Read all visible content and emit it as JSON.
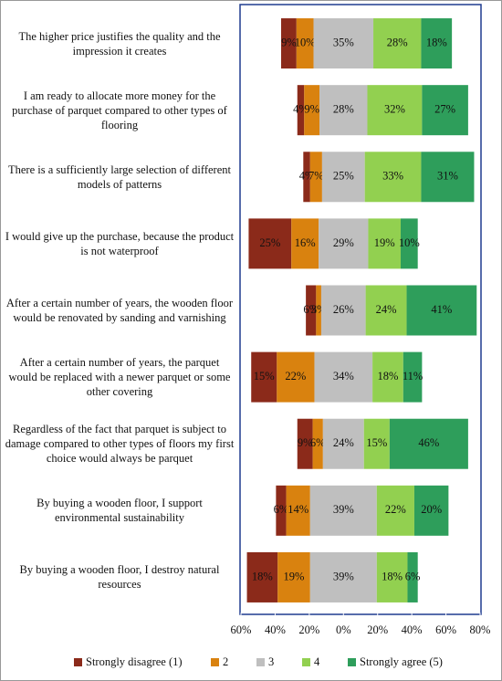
{
  "chart_data": {
    "type": "diverging_bar",
    "categories": [
      "The higher price justifies the quality and the impression it creates",
      "I am ready to allocate more money for the purchase of parquet compared to other types of flooring",
      "There is a sufficiently large selection of different models of patterns",
      "I would give up the purchase, because the product is not waterproof",
      "After a certain number of years, the wooden floor would be renovated by sanding and varnishing",
      "After a certain number of years, the parquet would be replaced with a newer parquet or some other covering",
      "Regardless of the fact that parquet is subject to damage compared to other types of floors my first choice would always be parquet",
      "By buying a wooden floor, I support environmental sustainability",
      "By buying a wooden floor, I destroy natural resources"
    ],
    "series": [
      {
        "name": "Strongly disagree (1)",
        "color": "#8b2a1a",
        "values": [
          9,
          4,
          4,
          25,
          6,
          15,
          9,
          6,
          18
        ],
        "value_labels": [
          "9%",
          "4%",
          "4%",
          "25%",
          "6%",
          "15%",
          "9%",
          "6%",
          "18%"
        ]
      },
      {
        "name": "2",
        "color": "#d9820f",
        "values": [
          10,
          9,
          7,
          16,
          3,
          22,
          6,
          14,
          19
        ],
        "value_labels": [
          "10%",
          "9%",
          "7%",
          "16%",
          "3%",
          "22%",
          "6%",
          "14%",
          "19%"
        ]
      },
      {
        "name": "3",
        "color": "#bfbfbf",
        "values": [
          35,
          28,
          25,
          29,
          26,
          34,
          24,
          39,
          39
        ],
        "value_labels": [
          "35%",
          "28%",
          "25%",
          "29%",
          "26%",
          "34%",
          "24%",
          "39%",
          "39%"
        ]
      },
      {
        "name": "4",
        "color": "#92d050",
        "values": [
          28,
          32,
          33,
          19,
          24,
          18,
          15,
          22,
          18
        ],
        "value_labels": [
          "28%",
          "32%",
          "33%",
          "19%",
          "24%",
          "18%",
          "15%",
          "22%",
          "18%"
        ]
      },
      {
        "name": "Strongly agree (5)",
        "color": "#2e9e5b",
        "values": [
          18,
          27,
          31,
          10,
          41,
          11,
          46,
          20,
          6
        ],
        "value_labels": [
          "18%",
          "27%",
          "31%",
          "10%",
          "41%",
          "11%",
          "46%",
          "20%",
          "6%"
        ]
      }
    ],
    "xlim": [
      -60,
      80
    ],
    "xticks": [
      {
        "value": -60,
        "label": "60%"
      },
      {
        "value": -40,
        "label": "40%"
      },
      {
        "value": -20,
        "label": "20%"
      },
      {
        "value": 0,
        "label": "0%"
      },
      {
        "value": 20,
        "label": "20%"
      },
      {
        "value": 40,
        "label": "40%"
      },
      {
        "value": 60,
        "label": "60%"
      },
      {
        "value": 80,
        "label": "80%"
      }
    ],
    "legend": "bottom"
  }
}
